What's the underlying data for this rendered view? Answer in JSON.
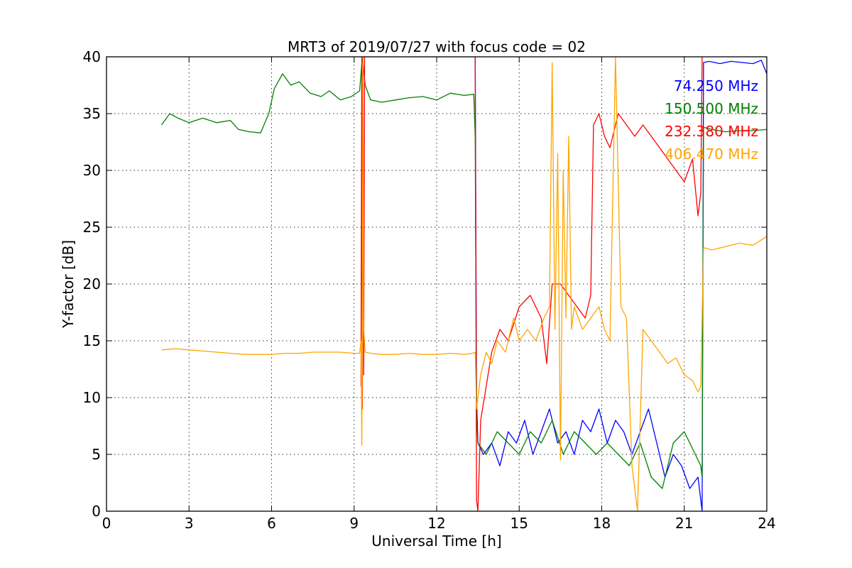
{
  "chart_data": {
    "type": "line",
    "title": "MRT3 of 2019/07/27 with focus code = 02",
    "xlabel": "Universal Time [h]",
    "ylabel": "Y-factor [dB]",
    "xlim": [
      0,
      24
    ],
    "ylim": [
      0,
      40
    ],
    "xticks": [
      "0",
      "3",
      "6",
      "9",
      "12",
      "15",
      "18",
      "21",
      "24"
    ],
    "yticks": [
      "0",
      "5",
      "10",
      "15",
      "20",
      "25",
      "30",
      "35",
      "40"
    ],
    "grid": true,
    "legend_placement": "top-right",
    "series": [
      {
        "name": "74.250 MHz",
        "color": "#0000ff",
        "x": [
          13.4,
          13.45,
          13.5,
          13.7,
          14.0,
          14.3,
          14.6,
          14.9,
          15.2,
          15.5,
          15.8,
          16.1,
          16.4,
          16.7,
          17.0,
          17.3,
          17.6,
          17.9,
          18.2,
          18.5,
          18.8,
          19.1,
          19.4,
          19.7,
          20.0,
          20.3,
          20.6,
          20.9,
          21.2,
          21.5,
          21.6,
          21.65,
          21.7,
          21.9,
          22.3,
          22.7,
          23.1,
          23.5,
          23.8,
          24.0
        ],
        "y": [
          40,
          10,
          6,
          5,
          6,
          4,
          7,
          6,
          8,
          5,
          7,
          9,
          6,
          7,
          5,
          8,
          7,
          9,
          6,
          8,
          7,
          5,
          7,
          9,
          6,
          3,
          5,
          4,
          2,
          3,
          1,
          0,
          39.5,
          39.6,
          39.4,
          39.6,
          39.5,
          39.4,
          39.7,
          38.5
        ]
      },
      {
        "name": "150.500 MHz",
        "color": "#008000",
        "x": [
          2.0,
          2.3,
          2.6,
          3.0,
          3.5,
          4.0,
          4.5,
          4.8,
          5.2,
          5.6,
          5.9,
          6.1,
          6.4,
          6.7,
          7.0,
          7.4,
          7.8,
          8.1,
          8.5,
          8.9,
          9.2,
          9.3,
          9.4,
          9.6,
          10.0,
          10.5,
          11.0,
          11.5,
          12.0,
          12.5,
          13.0,
          13.35,
          13.4,
          13.45,
          13.5,
          13.8,
          14.2,
          14.6,
          15.0,
          15.4,
          15.8,
          16.2,
          16.6,
          17.0,
          17.4,
          17.8,
          18.2,
          18.6,
          19.0,
          19.4,
          19.8,
          20.2,
          20.6,
          21.0,
          21.4,
          21.6,
          21.65,
          21.7,
          22.0,
          22.5,
          23.0,
          23.5,
          24.0
        ],
        "y": [
          34.0,
          35.0,
          34.6,
          34.2,
          34.6,
          34.2,
          34.4,
          33.6,
          33.4,
          33.3,
          35.0,
          37.2,
          38.5,
          37.5,
          37.8,
          36.8,
          36.5,
          37.0,
          36.2,
          36.5,
          37.0,
          40.0,
          37.5,
          36.2,
          36.0,
          36.2,
          36.4,
          36.5,
          36.2,
          36.8,
          36.6,
          36.7,
          33.0,
          8,
          6,
          5,
          7,
          6,
          5,
          7,
          6,
          8,
          5,
          7,
          6,
          5,
          6,
          5,
          4,
          6,
          3,
          2,
          6,
          7,
          5,
          4,
          3,
          33.8,
          33.6,
          33.4,
          33.5,
          33.5,
          33.6
        ]
      },
      {
        "name": "232.380 MHz",
        "color": "#ff0000",
        "x": [
          9.25,
          9.28,
          9.3,
          9.32,
          9.35,
          9.38,
          13.4,
          13.45,
          13.5,
          13.6,
          13.8,
          14.0,
          14.3,
          14.6,
          15.0,
          15.4,
          15.8,
          16.0,
          16.2,
          16.5,
          16.8,
          17.1,
          17.4,
          17.6,
          17.7,
          17.9,
          18.1,
          18.3,
          18.6,
          18.9,
          19.2,
          19.5,
          19.8,
          20.1,
          20.4,
          20.7,
          21.0,
          21.3,
          21.5,
          21.6,
          21.65
        ],
        "y": [
          11,
          40,
          9,
          40,
          12,
          40,
          40,
          1,
          0,
          8,
          11,
          14,
          16,
          15,
          18,
          19,
          17,
          13,
          20,
          20,
          19,
          18,
          17,
          19,
          34,
          35,
          33,
          32,
          35,
          34,
          33,
          34,
          33,
          32,
          31,
          30,
          29,
          31,
          26,
          28,
          40
        ]
      },
      {
        "name": "406.470 MHz",
        "color": "#ffa500",
        "x": [
          2.0,
          2.5,
          3.0,
          3.5,
          4.0,
          4.5,
          5.0,
          5.5,
          6.0,
          6.5,
          7.0,
          7.5,
          8.0,
          8.5,
          9.0,
          9.2,
          9.25,
          9.28,
          9.3,
          9.32,
          9.35,
          9.4,
          9.6,
          10.0,
          10.5,
          11.0,
          11.5,
          12.0,
          12.5,
          13.0,
          13.3,
          13.4,
          13.45,
          13.6,
          13.8,
          14.0,
          14.2,
          14.5,
          14.8,
          15.0,
          15.3,
          15.6,
          15.9,
          16.1,
          16.2,
          16.3,
          16.4,
          16.5,
          16.6,
          16.7,
          16.8,
          16.9,
          17.0,
          17.3,
          17.6,
          17.9,
          18.1,
          18.3,
          18.5,
          18.7,
          18.9,
          19.1,
          19.3,
          19.5,
          19.8,
          20.1,
          20.4,
          20.7,
          21.0,
          21.3,
          21.5,
          21.6,
          21.65,
          21.7,
          22.0,
          22.5,
          23.0,
          23.5,
          24.0
        ],
        "y": [
          14.2,
          14.3,
          14.2,
          14.1,
          14.0,
          13.9,
          13.8,
          13.8,
          13.8,
          13.9,
          13.9,
          14.0,
          14.0,
          14.0,
          13.9,
          13.9,
          15.0,
          5.8,
          17.0,
          40.0,
          16.0,
          14.0,
          13.9,
          13.8,
          13.8,
          13.9,
          13.8,
          13.8,
          13.9,
          13.8,
          13.9,
          14.0,
          9.0,
          12.0,
          14.0,
          13.0,
          15.0,
          14.0,
          17.0,
          15.0,
          16.0,
          15.0,
          17.0,
          18.0,
          39.5,
          16.0,
          31.5,
          4.5,
          30.0,
          17.0,
          33.0,
          16.0,
          18.0,
          16.0,
          17.0,
          18.0,
          16.0,
          15.0,
          40.0,
          18.0,
          17.0,
          4.0,
          0.0,
          16.0,
          15.0,
          14.0,
          13.0,
          13.5,
          12.0,
          11.5,
          10.5,
          11.0,
          17.0,
          23.2,
          23.0,
          23.3,
          23.6,
          23.4,
          24.2
        ]
      }
    ]
  }
}
